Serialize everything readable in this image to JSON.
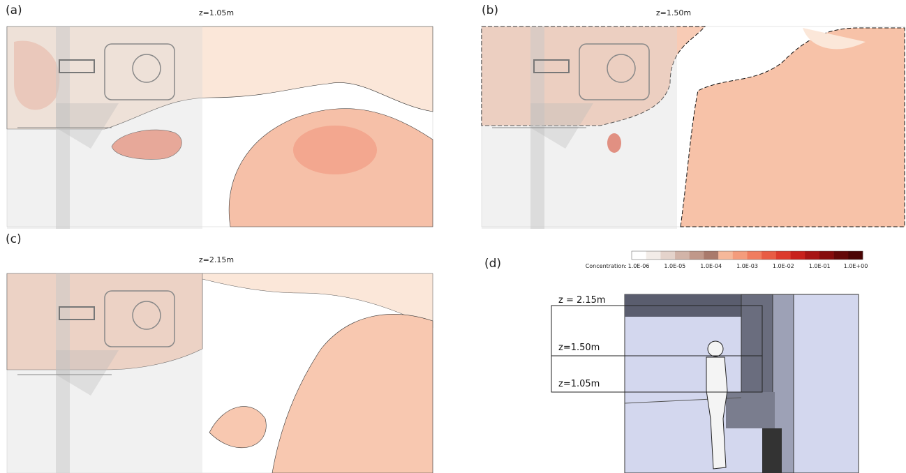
{
  "panels": [
    {
      "label": "(a)",
      "title": "z=1.05m"
    },
    {
      "label": "(b)",
      "title": "z=1.50m"
    },
    {
      "label": "(c)",
      "title": "z=2.15m"
    }
  ],
  "legend": {
    "title": "Concentration:",
    "ticks": [
      "1.0E-06",
      "1.0E-05",
      "1.0E-04",
      "1.0E-03",
      "1.0E-02",
      "1.0E-01",
      "1.0E+00"
    ],
    "colors": [
      "#ffffff",
      "#f2ece8",
      "#e4d3cb",
      "#d2b4a8",
      "#c0988a",
      "#a97a6c",
      "#f6b89a",
      "#f49c7c",
      "#f07d5f",
      "#e85c44",
      "#dc3a2c",
      "#c8211c",
      "#a71414",
      "#860d0d",
      "#640808",
      "#4a0404"
    ]
  },
  "diagram": {
    "label": "(d)",
    "levels": [
      "z = 2.15m",
      "z=1.50m",
      "z=1.05m"
    ]
  }
}
